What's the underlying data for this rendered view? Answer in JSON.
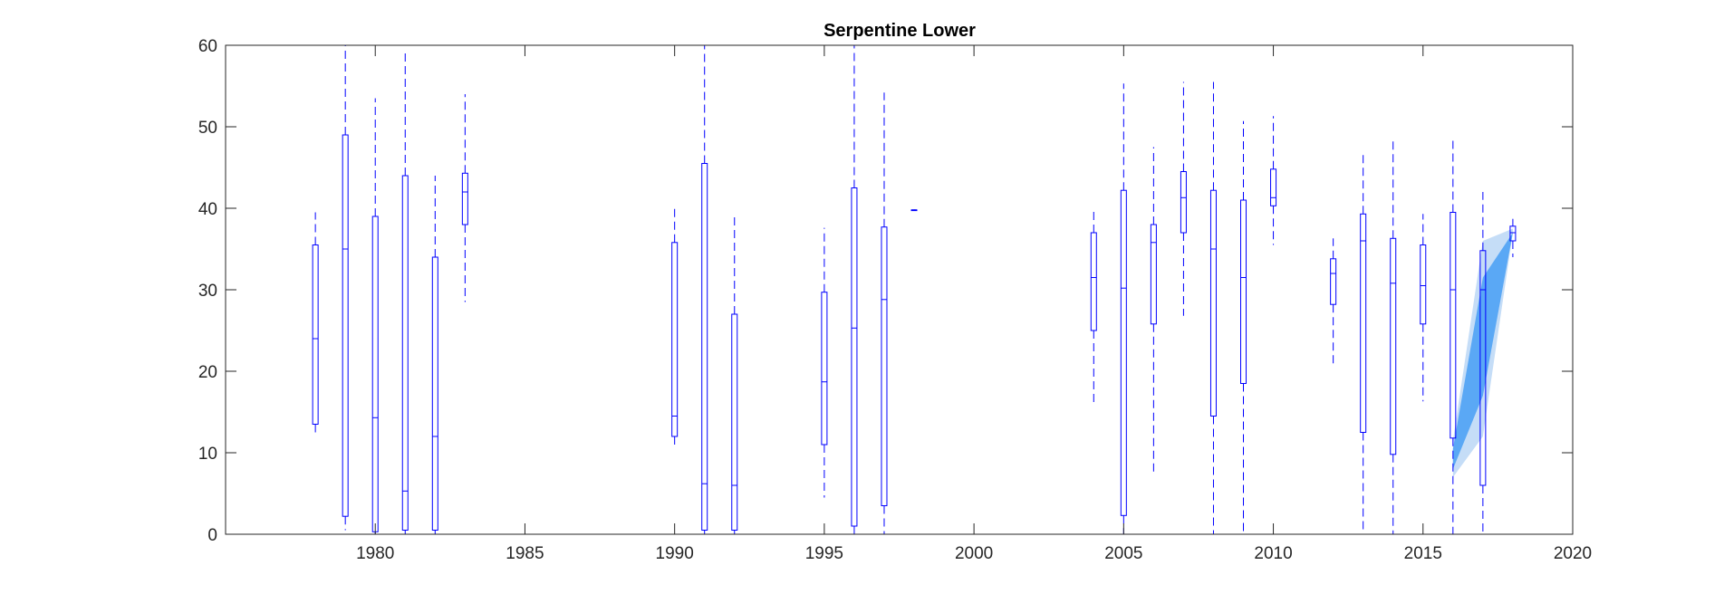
{
  "chart_data": {
    "type": "box",
    "title": "Serpentine Lower",
    "xlabel": "",
    "ylabel": "",
    "xlim": [
      1975,
      2020
    ],
    "ylim": [
      0,
      60
    ],
    "x_ticks": [
      1980,
      1985,
      1990,
      1995,
      2000,
      2005,
      2010,
      2015,
      2020
    ],
    "y_ticks": [
      0,
      10,
      20,
      30,
      40,
      50,
      60
    ],
    "grid": false,
    "colors": {
      "box": "#0000ff",
      "band_outer": "#c5ddf7",
      "band_inner": "#5aa8f5",
      "axis": "#262626"
    },
    "boxes": [
      {
        "x": 1978,
        "whisker_low": 12.5,
        "q1": 13.5,
        "median": 24,
        "q3": 35.5,
        "whisker_high": 39.5
      },
      {
        "x": 1979,
        "whisker_low": 0.5,
        "q1": 2.2,
        "median": 35,
        "q3": 49,
        "whisker_high": 60
      },
      {
        "x": 1980,
        "whisker_low": 0,
        "q1": 0.3,
        "median": 14.3,
        "q3": 39,
        "whisker_high": 53.5
      },
      {
        "x": 1981,
        "whisker_low": 0,
        "q1": 0.5,
        "median": 5.3,
        "q3": 44,
        "whisker_high": 59.5
      },
      {
        "x": 1982,
        "whisker_low": 0,
        "q1": 0.5,
        "median": 12,
        "q3": 34,
        "whisker_high": 44
      },
      {
        "x": 1983,
        "whisker_low": 28.5,
        "q1": 38,
        "median": 42,
        "q3": 44.3,
        "whisker_high": 54
      },
      {
        "x": 1990,
        "whisker_low": 10.8,
        "q1": 12,
        "median": 14.5,
        "q3": 35.8,
        "whisker_high": 40
      },
      {
        "x": 1991,
        "whisker_low": 0,
        "q1": 0.5,
        "median": 6.2,
        "q3": 45.5,
        "whisker_high": 60
      },
      {
        "x": 1992,
        "whisker_low": 0,
        "q1": 0.5,
        "median": 6,
        "q3": 27,
        "whisker_high": 39.3
      },
      {
        "x": 1995,
        "whisker_low": 4.5,
        "q1": 11,
        "median": 18.7,
        "q3": 29.7,
        "whisker_high": 37.6
      },
      {
        "x": 1996,
        "whisker_low": 0,
        "q1": 1,
        "median": 25.3,
        "q3": 42.5,
        "whisker_high": 60
      },
      {
        "x": 1997,
        "whisker_low": 0,
        "q1": 3.5,
        "median": 28.8,
        "q3": 37.7,
        "whisker_high": 54.2
      },
      {
        "x": 1998,
        "whisker_low": 39.8,
        "q1": 39.8,
        "median": 39.8,
        "q3": 39.8,
        "whisker_high": 39.8
      },
      {
        "x": 2004,
        "whisker_low": 16,
        "q1": 25,
        "median": 31.5,
        "q3": 37,
        "whisker_high": 40
      },
      {
        "x": 2005,
        "whisker_low": 0,
        "q1": 2.3,
        "median": 30.2,
        "q3": 42.2,
        "whisker_high": 55.3
      },
      {
        "x": 2006,
        "whisker_low": 7.3,
        "q1": 25.8,
        "median": 35.8,
        "q3": 38,
        "whisker_high": 47.5
      },
      {
        "x": 2007,
        "whisker_low": 26.8,
        "q1": 37,
        "median": 41.3,
        "q3": 44.5,
        "whisker_high": 55.5
      },
      {
        "x": 2008,
        "whisker_low": 0,
        "q1": 14.5,
        "median": 35,
        "q3": 42.2,
        "whisker_high": 55.5
      },
      {
        "x": 2009,
        "whisker_low": 0,
        "q1": 18.5,
        "median": 31.5,
        "q3": 41,
        "whisker_high": 50.7
      },
      {
        "x": 2010,
        "whisker_low": 35.5,
        "q1": 40.3,
        "median": 41.3,
        "q3": 44.8,
        "whisker_high": 51.3
      },
      {
        "x": 2012,
        "whisker_low": 20.8,
        "q1": 28.2,
        "median": 32,
        "q3": 33.8,
        "whisker_high": 36.3
      },
      {
        "x": 2013,
        "whisker_low": 0,
        "q1": 12.5,
        "median": 36,
        "q3": 39.3,
        "whisker_high": 46.7
      },
      {
        "x": 2014,
        "whisker_low": 0,
        "q1": 9.8,
        "median": 30.8,
        "q3": 36.3,
        "whisker_high": 48.2
      },
      {
        "x": 2015,
        "whisker_low": 16.3,
        "q1": 25.8,
        "median": 30.5,
        "q3": 35.5,
        "whisker_high": 39.3
      },
      {
        "x": 2016,
        "whisker_low": 0,
        "q1": 11.8,
        "median": 30,
        "q3": 39.5,
        "whisker_high": 48.5
      },
      {
        "x": 2017,
        "whisker_low": 0,
        "q1": 6,
        "median": 30,
        "q3": 34.8,
        "whisker_high": 42
      },
      {
        "x": 2018,
        "whisker_low": 34,
        "q1": 36,
        "median": 37,
        "q3": 37.8,
        "whisker_high": 38.7
      }
    ],
    "bands": [
      {
        "name": "",
        "tier": "outer",
        "x": [
          2016,
          2017,
          2018
        ],
        "lower": [
          7,
          12,
          37
        ],
        "upper": [
          11.5,
          36,
          37.5
        ]
      },
      {
        "name": "",
        "tier": "inner",
        "x": [
          2016,
          2017,
          2018
        ],
        "lower": [
          8,
          17,
          37
        ],
        "upper": [
          10.5,
          31.5,
          37
        ]
      }
    ]
  }
}
